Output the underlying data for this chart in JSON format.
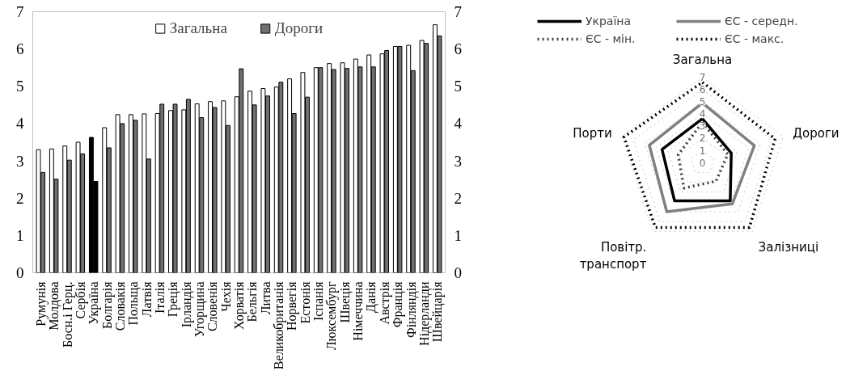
{
  "chart_data": [
    {
      "type": "bar",
      "categories": [
        "Румунія",
        "Молдова",
        "Босн.і Герц.",
        "Сербія",
        "Україна",
        "Болгарія",
        "Словакія",
        "Польща",
        "Латвія",
        "Італія",
        "Греція",
        "Ірландія",
        "Угорщина",
        "Словенія",
        "Чехія",
        "Хорватія",
        "Бельгія",
        "Литва",
        "Великобританія",
        "Норвегія",
        "Естонія",
        "Іспанія",
        "Люксембург",
        "Швеція",
        "Німеччина",
        "Данія",
        "Австрія",
        "Франція",
        "Фінляндія",
        "Нідерланди",
        "Швейцарія"
      ],
      "series": [
        {
          "name": "Загальна",
          "color": "#ffffff",
          "colors": [
            "#ffffff",
            "#ffffff",
            "#ffffff",
            "#ffffff",
            "#000000",
            "#ffffff",
            "#ffffff",
            "#ffffff",
            "#ffffff",
            "#ffffff",
            "#ffffff",
            "#ffffff",
            "#ffffff",
            "#ffffff",
            "#ffffff",
            "#ffffff",
            "#ffffff",
            "#ffffff",
            "#ffffff",
            "#ffffff",
            "#ffffff",
            "#ffffff",
            "#ffffff",
            "#ffffff",
            "#ffffff",
            "#ffffff",
            "#ffffff",
            "#ffffff",
            "#ffffff",
            "#ffffff",
            "#ffffff"
          ],
          "values": [
            3.3,
            3.32,
            3.4,
            3.5,
            3.63,
            3.89,
            4.24,
            4.24,
            4.26,
            4.27,
            4.35,
            4.37,
            4.53,
            4.59,
            4.61,
            4.72,
            4.87,
            4.94,
            4.98,
            5.2,
            5.37,
            5.5,
            5.61,
            5.63,
            5.73,
            5.84,
            5.87,
            6.07,
            6.1,
            6.23,
            6.65
          ]
        },
        {
          "name": "Дороги",
          "color": "#707070",
          "colors": [
            "#707070",
            "#707070",
            "#707070",
            "#707070",
            "#000000",
            "#707070",
            "#707070",
            "#707070",
            "#707070",
            "#707070",
            "#707070",
            "#707070",
            "#707070",
            "#707070",
            "#707070",
            "#707070",
            "#707070",
            "#707070",
            "#707070",
            "#707070",
            "#707070",
            "#707070",
            "#707070",
            "#707070",
            "#707070",
            "#707070",
            "#707070",
            "#707070",
            "#707070",
            "#707070",
            "#707070"
          ],
          "values": [
            2.69,
            2.51,
            3.02,
            3.19,
            2.45,
            3.35,
            4.0,
            4.09,
            3.05,
            4.52,
            4.52,
            4.65,
            4.16,
            4.43,
            3.95,
            5.47,
            4.5,
            4.74,
            5.11,
            4.27,
            4.71,
            5.5,
            5.45,
            5.48,
            5.52,
            5.52,
            5.96,
            6.07,
            5.42,
            6.15,
            6.35
          ]
        }
      ],
      "ylim": [
        0,
        7
      ],
      "yticks": [
        0,
        1,
        2,
        3,
        4,
        5,
        6,
        7
      ],
      "y2lim": [
        0,
        7
      ],
      "y2ticks": [
        0,
        1,
        2,
        3,
        4,
        5,
        6,
        7
      ],
      "grid": false,
      "legend": "top"
    },
    {
      "type": "radar",
      "categories": [
        "Загальна",
        "Дороги",
        "Залізниці",
        "Повітр.\nтранспорт",
        "Порти"
      ],
      "series": [
        {
          "name": "Україна",
          "color": "#000000",
          "line_style": "solid",
          "values": [
            3.6,
            2.5,
            3.9,
            3.9,
            3.5
          ]
        },
        {
          "name": "ЄС - середн.",
          "color": "#808080",
          "line_style": "solid",
          "values": [
            4.9,
            4.5,
            4.2,
            5.0,
            4.6
          ]
        },
        {
          "name": "ЄС - мін.",
          "color": "#404040",
          "line_style": "dotted",
          "values": [
            3.3,
            2.2,
            1.9,
            2.6,
            2.1
          ]
        },
        {
          "name": "ЄС - макс.",
          "color": "#000000",
          "line_style": "dotted",
          "values": [
            6.6,
            6.3,
            6.6,
            6.6,
            6.8
          ]
        }
      ],
      "ylim": [
        0,
        7
      ],
      "yticks": [
        0,
        1,
        2,
        3,
        4,
        5,
        6,
        7
      ],
      "legend": "top",
      "marker": "none"
    }
  ]
}
